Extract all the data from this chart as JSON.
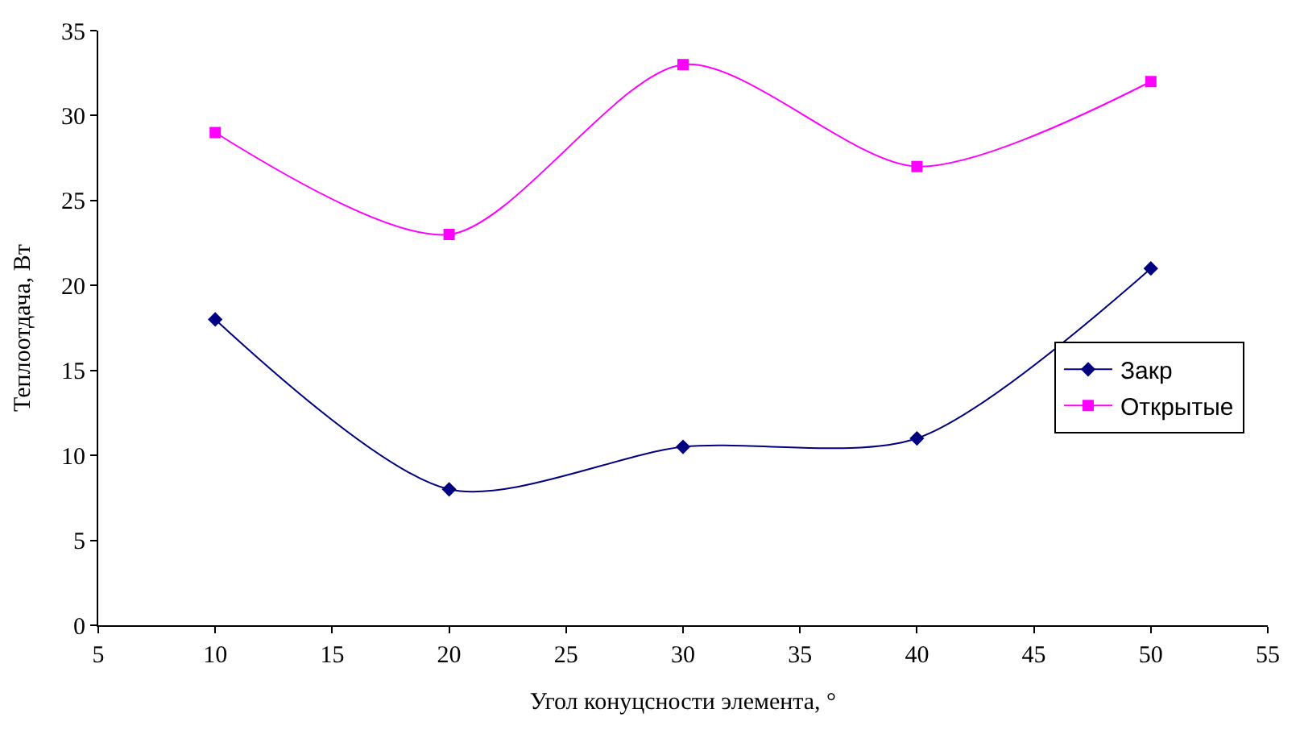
{
  "chart_data": {
    "type": "line",
    "xlabel": "Угол конуцсности элемента, °",
    "ylabel": "Теплоотдача, Вт",
    "x": [
      10,
      20,
      30,
      40,
      50
    ],
    "series": [
      {
        "name": "Закр",
        "color": "#000080",
        "marker": "diamond",
        "values": [
          18,
          8,
          10.5,
          11,
          21
        ]
      },
      {
        "name": "Открытые",
        "color": "#ff00ff",
        "marker": "square",
        "values": [
          29,
          23,
          33,
          27,
          32
        ]
      }
    ],
    "xlim": [
      5,
      55
    ],
    "xticks": [
      5,
      10,
      15,
      20,
      25,
      30,
      35,
      40,
      45,
      50,
      55
    ],
    "ylim": [
      0,
      35
    ],
    "yticks": [
      0,
      5,
      10,
      15,
      20,
      25,
      30,
      35
    ],
    "grid": false,
    "legend": "right",
    "line_style": "solid"
  }
}
